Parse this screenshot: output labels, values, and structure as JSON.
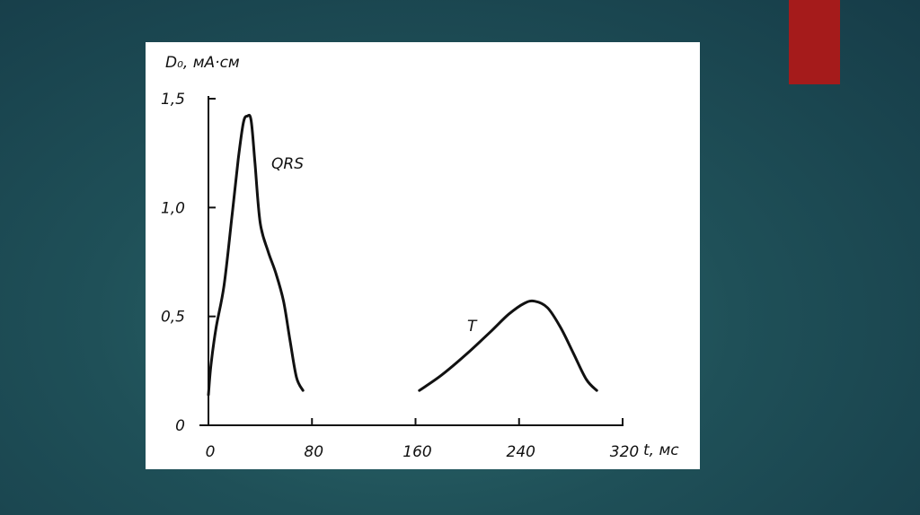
{
  "slide": {
    "accent_color": "#a51b1b",
    "background_color": "#1f5058"
  },
  "chart_data": {
    "type": "line",
    "title": "",
    "ylabel": "D₀, мА·см",
    "xlabel": "t, мс",
    "xlim": [
      0,
      320
    ],
    "ylim": [
      0,
      1.5
    ],
    "x_ticks": [
      {
        "value": 0,
        "label": "0"
      },
      {
        "value": 80,
        "label": "80"
      },
      {
        "value": 160,
        "label": "160"
      },
      {
        "value": 240,
        "label": "240"
      },
      {
        "value": 320,
        "label": "320"
      }
    ],
    "y_ticks": [
      {
        "value": 0,
        "label": "0"
      },
      {
        "value": 0.5,
        "label": "0,5"
      },
      {
        "value": 1.0,
        "label": "1,0"
      },
      {
        "value": 1.5,
        "label": "1,5"
      }
    ],
    "grid": false,
    "series": [
      {
        "name": "QRS",
        "color": "#111111",
        "points": [
          [
            0,
            0.14
          ],
          [
            2,
            0.28
          ],
          [
            6,
            0.45
          ],
          [
            12,
            0.64
          ],
          [
            18,
            0.95
          ],
          [
            23,
            1.22
          ],
          [
            27,
            1.39
          ],
          [
            30,
            1.42
          ],
          [
            33,
            1.4
          ],
          [
            36,
            1.2
          ],
          [
            40,
            0.93
          ],
          [
            46,
            0.8
          ],
          [
            52,
            0.7
          ],
          [
            58,
            0.57
          ],
          [
            63,
            0.39
          ],
          [
            68,
            0.22
          ],
          [
            73,
            0.16
          ]
        ]
      },
      {
        "name": "T",
        "color": "#111111",
        "points": [
          [
            163,
            0.16
          ],
          [
            180,
            0.23
          ],
          [
            200,
            0.33
          ],
          [
            218,
            0.43
          ],
          [
            232,
            0.51
          ],
          [
            244,
            0.56
          ],
          [
            252,
            0.57
          ],
          [
            262,
            0.54
          ],
          [
            272,
            0.45
          ],
          [
            282,
            0.33
          ],
          [
            292,
            0.21
          ],
          [
            300,
            0.16
          ]
        ]
      }
    ]
  }
}
